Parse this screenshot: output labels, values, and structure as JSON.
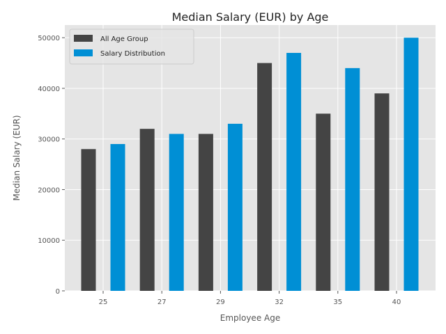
{
  "chart_data": {
    "type": "bar",
    "title": "Median Salary (EUR) by Age",
    "xlabel": "Employee Age",
    "ylabel": "Median Salary (EUR)",
    "categories": [
      "25",
      "27",
      "29",
      "32",
      "35",
      "40"
    ],
    "series": [
      {
        "name": "All Age Group",
        "values": [
          28000,
          32000,
          31000,
          45000,
          35000,
          39000
        ],
        "color": "#444444"
      },
      {
        "name": "Salary Distribution",
        "values": [
          29000,
          31000,
          33000,
          47000,
          44000,
          50000
        ],
        "color": "#008fd5"
      }
    ],
    "ylim": [
      0,
      52500
    ],
    "yticks": [
      0,
      10000,
      20000,
      30000,
      40000,
      50000
    ],
    "grid": true,
    "background": "#e5e5e5",
    "legend_position": "top-left"
  }
}
